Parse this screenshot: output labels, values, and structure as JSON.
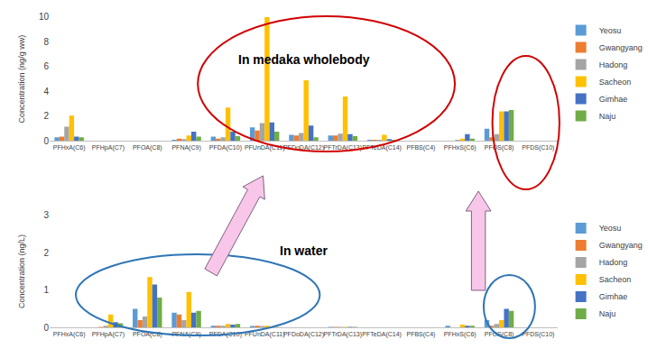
{
  "chart_data": [
    {
      "type": "bar",
      "annotations": [
        "In medaka wholebody"
      ],
      "y_label": "Concentration (ng/g ww)",
      "categories": [
        "PFHxA(C6)",
        "PFHpA(C7)",
        "PFOA(C8)",
        "PFNA(C9)",
        "PFDA(C10)",
        "PFUnDA(C11)",
        "PFDoDA(C12)",
        "PFTrDA(C13)",
        "PFTeDA(C14)",
        "PFBS(C4)",
        "PFHxS(C6)",
        "PFOS(C8)",
        "PFDS(C10)"
      ],
      "series": [
        {
          "name": "Yeosu",
          "color": "#5b9bd5",
          "values": [
            0.3,
            0,
            0,
            0.05,
            0.35,
            1.1,
            0.5,
            0.45,
            0.1,
            0,
            0,
            1.0,
            0
          ]
        },
        {
          "name": "Gwangyang",
          "color": "#ed7d31",
          "values": [
            0.35,
            0,
            0,
            0.2,
            0.2,
            0.85,
            0.45,
            0.45,
            0.05,
            0,
            0,
            0.3,
            0
          ]
        },
        {
          "name": "Hadong",
          "color": "#a5a5a5",
          "values": [
            1.15,
            0,
            0,
            0.15,
            0.3,
            1.45,
            0.65,
            0.6,
            0.1,
            0,
            0.05,
            0.55,
            0
          ]
        },
        {
          "name": "Sacheon",
          "color": "#ffc000",
          "values": [
            2.05,
            0,
            0,
            0.45,
            2.7,
            10.0,
            4.9,
            3.6,
            0.5,
            0,
            0.2,
            2.4,
            0
          ]
        },
        {
          "name": "Gimhae",
          "color": "#4472c4",
          "values": [
            0.35,
            0,
            0,
            0.75,
            0.75,
            1.5,
            1.25,
            0.55,
            0.15,
            0,
            0.55,
            2.4,
            0
          ]
        },
        {
          "name": "Naju",
          "color": "#70ad47",
          "values": [
            0.3,
            0,
            0,
            0.35,
            0.4,
            0.75,
            0.3,
            0.4,
            0.05,
            0,
            0.2,
            2.5,
            0
          ]
        }
      ],
      "ylim": [
        0,
        10
      ],
      "yticks": [
        0,
        2,
        4,
        6,
        8,
        10
      ],
      "grid": false,
      "legend": "right"
    },
    {
      "type": "bar",
      "annotations": [
        "In water"
      ],
      "y_label": "Concentration (ng/L)",
      "categories": [
        "PFHxA(C6)",
        "PFHpA(C7)",
        "PFOA(C8)",
        "PFNA(C9)",
        "PFDA(C10)",
        "PFUnDA(C11)",
        "PFDoDA(C12)",
        "PFTrDA(C13)",
        "PFTeDA(C14)",
        "PFBS(C4)",
        "PFHxS(C6)",
        "PFOS(C8)",
        "PFDS(C10)"
      ],
      "series": [
        {
          "name": "Yeosu",
          "color": "#5b9bd5",
          "values": [
            0,
            0,
            0.5,
            0.4,
            0.05,
            0.03,
            0,
            0.01,
            0,
            0,
            0.05,
            0.2,
            0
          ]
        },
        {
          "name": "Gwangyang",
          "color": "#ed7d31",
          "values": [
            0,
            0.02,
            0.2,
            0.35,
            0.05,
            0.05,
            0,
            0.01,
            0,
            0,
            0,
            0.05,
            0
          ]
        },
        {
          "name": "Hadong",
          "color": "#a5a5a5",
          "values": [
            0,
            0.05,
            0.3,
            0.2,
            0.05,
            0.03,
            0,
            0.01,
            0,
            0,
            0,
            0.1,
            0
          ]
        },
        {
          "name": "Sacheon",
          "color": "#ffc000",
          "values": [
            0,
            0.35,
            1.35,
            0.95,
            0.1,
            0.05,
            0,
            0.01,
            0,
            0,
            0.08,
            0.2,
            0
          ]
        },
        {
          "name": "Gimhae",
          "color": "#4472c4",
          "values": [
            0,
            0.15,
            1.15,
            0.4,
            0.08,
            0.02,
            0,
            0.01,
            0,
            0,
            0.05,
            0.5,
            0
          ]
        },
        {
          "name": "Naju",
          "color": "#70ad47",
          "values": [
            0,
            0.12,
            0.8,
            0.45,
            0.1,
            0.02,
            0,
            0.01,
            0,
            0,
            0.05,
            0.45,
            0
          ]
        }
      ],
      "ylim": [
        0,
        3
      ],
      "yticks": [
        0,
        1,
        2,
        3
      ],
      "grid": false,
      "legend": "right"
    }
  ]
}
